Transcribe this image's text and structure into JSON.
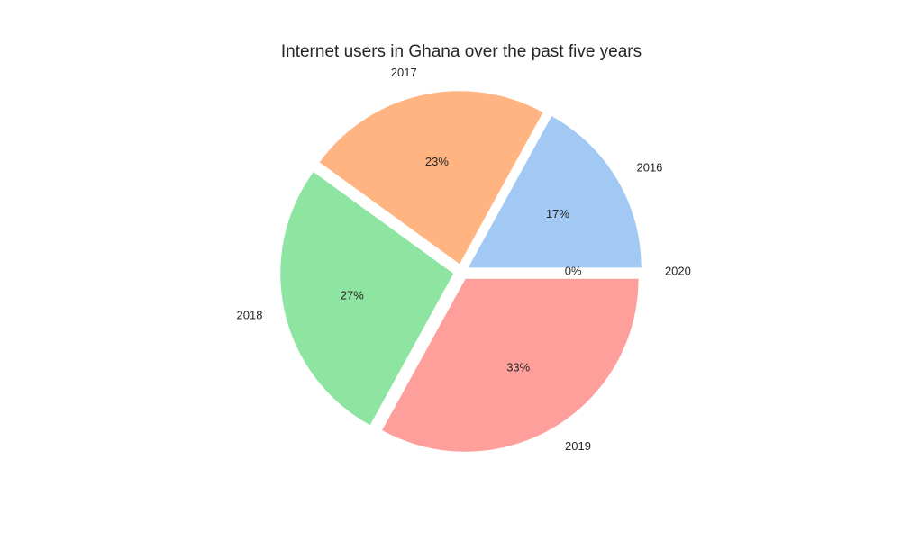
{
  "chart_data": {
    "type": "pie",
    "title": "Internet users in Ghana over the past five years",
    "categories": [
      "2016",
      "2017",
      "2018",
      "2019",
      "2020"
    ],
    "values": [
      17,
      23,
      27,
      33,
      0
    ],
    "percent_labels": [
      "17%",
      "23%",
      "27%",
      "33%",
      "0%"
    ],
    "colors": [
      "#a1c9f4",
      "#ffb482",
      "#8de5a1",
      "#ff9f9b",
      "#d0bbff"
    ],
    "start_angle_deg": 0,
    "direction": "counterclockwise",
    "exploded": true,
    "legend": "none"
  }
}
